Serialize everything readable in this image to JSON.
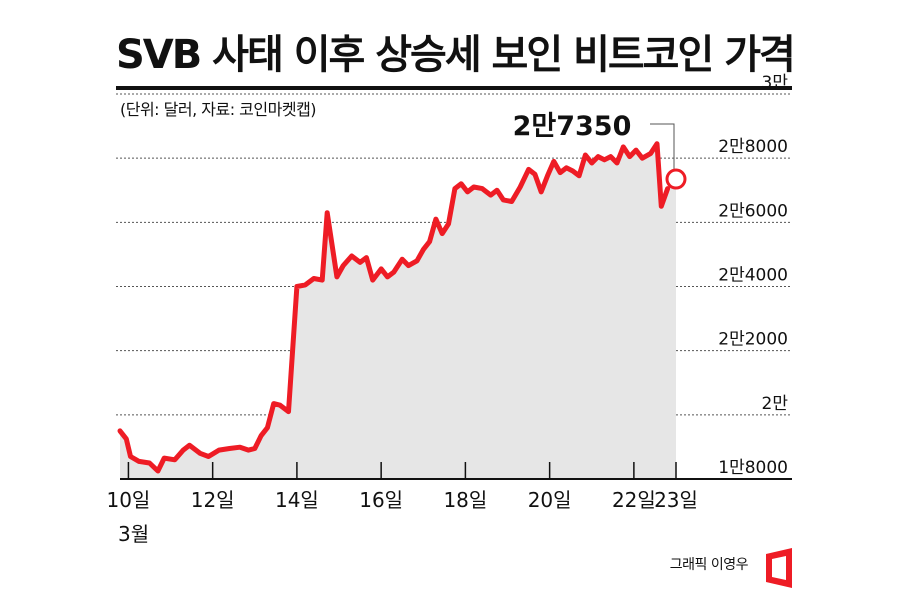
{
  "header": {
    "title": "SVB 사태 이후 상승세 보인 비트코인 가격",
    "subtitle": "(단위: 달러, 자료: 코인마켓캡)"
  },
  "footer": {
    "credit": "그래픽 이영우"
  },
  "chart_data": {
    "type": "area",
    "title": "SVB 사태 이후 상승세 보인 비트코인 가격",
    "subtitle": "(단위: 달러, 자료: 코인마켓캡)",
    "unit": "달러",
    "source": "코인마켓캡",
    "xlabel": "",
    "ylabel": "",
    "month_label": "3월",
    "x_tick_labels": [
      {
        "day": 10,
        "label": "10일"
      },
      {
        "day": 12,
        "label": "12일"
      },
      {
        "day": 14,
        "label": "14일"
      },
      {
        "day": 16,
        "label": "16일"
      },
      {
        "day": 18,
        "label": "18일"
      },
      {
        "day": 20,
        "label": "20일"
      },
      {
        "day": 22,
        "label": "22일"
      },
      {
        "day": 23,
        "label": "23일"
      }
    ],
    "y_tick_labels": [
      {
        "value": 18000,
        "label": "1만8000"
      },
      {
        "value": 20000,
        "label": "2만"
      },
      {
        "value": 22000,
        "label": "2만2000"
      },
      {
        "value": 24000,
        "label": "2만4000"
      },
      {
        "value": 26000,
        "label": "2만6000"
      },
      {
        "value": 28000,
        "label": "2만8000"
      },
      {
        "value": 30000,
        "label": "3만"
      }
    ],
    "ylim": [
      18000,
      30000
    ],
    "xlim": [
      9.8,
      23.0
    ],
    "grid": true,
    "legend": "none",
    "line_color": "#ee1c25",
    "area_color": "#e6e6e6",
    "annotation": {
      "label": "2만7350",
      "x": 23.0,
      "y": 27350
    },
    "series": [
      {
        "points": [
          [
            9.8,
            19500
          ],
          [
            9.95,
            19250
          ],
          [
            10.05,
            18700
          ],
          [
            10.25,
            18550
          ],
          [
            10.5,
            18500
          ],
          [
            10.7,
            18250
          ],
          [
            10.85,
            18650
          ],
          [
            11.1,
            18600
          ],
          [
            11.3,
            18900
          ],
          [
            11.45,
            19050
          ],
          [
            11.7,
            18800
          ],
          [
            11.9,
            18700
          ],
          [
            12.15,
            18900
          ],
          [
            12.4,
            18950
          ],
          [
            12.65,
            18990
          ],
          [
            12.85,
            18900
          ],
          [
            13.0,
            18950
          ],
          [
            13.15,
            19350
          ],
          [
            13.3,
            19600
          ],
          [
            13.45,
            20350
          ],
          [
            13.6,
            20300
          ],
          [
            13.8,
            20100
          ],
          [
            14.0,
            24000
          ],
          [
            14.2,
            24050
          ],
          [
            14.4,
            24250
          ],
          [
            14.6,
            24200
          ],
          [
            14.72,
            26300
          ],
          [
            14.8,
            25600
          ],
          [
            14.95,
            24300
          ],
          [
            15.1,
            24650
          ],
          [
            15.3,
            24950
          ],
          [
            15.5,
            24750
          ],
          [
            15.65,
            24900
          ],
          [
            15.8,
            24200
          ],
          [
            16.0,
            24550
          ],
          [
            16.15,
            24300
          ],
          [
            16.3,
            24450
          ],
          [
            16.5,
            24850
          ],
          [
            16.65,
            24650
          ],
          [
            16.85,
            24800
          ],
          [
            17.0,
            25150
          ],
          [
            17.15,
            25400
          ],
          [
            17.3,
            26100
          ],
          [
            17.45,
            25650
          ],
          [
            17.6,
            25950
          ],
          [
            17.75,
            27050
          ],
          [
            17.9,
            27200
          ],
          [
            18.05,
            26950
          ],
          [
            18.2,
            27100
          ],
          [
            18.4,
            27050
          ],
          [
            18.6,
            26850
          ],
          [
            18.75,
            27000
          ],
          [
            18.9,
            26700
          ],
          [
            19.1,
            26650
          ],
          [
            19.3,
            27100
          ],
          [
            19.5,
            27650
          ],
          [
            19.65,
            27500
          ],
          [
            19.8,
            26950
          ],
          [
            19.95,
            27450
          ],
          [
            20.1,
            27900
          ],
          [
            20.25,
            27550
          ],
          [
            20.4,
            27700
          ],
          [
            20.55,
            27600
          ],
          [
            20.7,
            27450
          ],
          [
            20.85,
            28100
          ],
          [
            21.0,
            27850
          ],
          [
            21.15,
            28050
          ],
          [
            21.3,
            27950
          ],
          [
            21.45,
            28050
          ],
          [
            21.6,
            27850
          ],
          [
            21.75,
            28350
          ],
          [
            21.9,
            28050
          ],
          [
            22.05,
            28250
          ],
          [
            22.2,
            28000
          ],
          [
            22.4,
            28150
          ],
          [
            22.55,
            28450
          ],
          [
            22.65,
            26500
          ],
          [
            22.8,
            27050
          ],
          [
            23.0,
            27350
          ]
        ]
      }
    ]
  }
}
